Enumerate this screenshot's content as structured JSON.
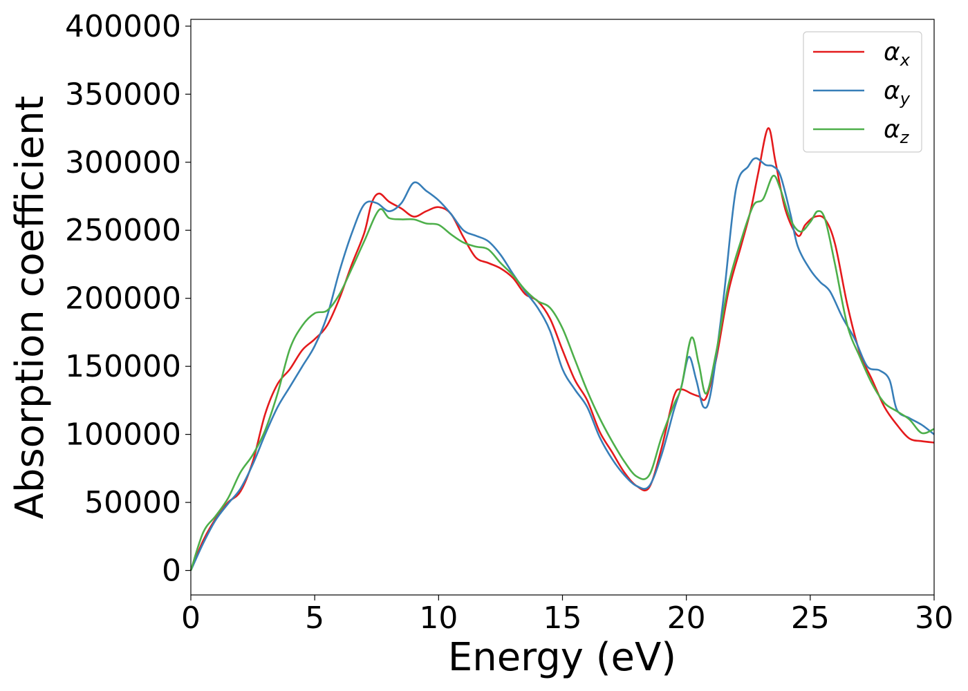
{
  "chart_data": {
    "type": "line",
    "title": "",
    "xlabel": "Energy (eV)",
    "ylabel": "Absorption coefficient",
    "xlim": [
      0,
      30
    ],
    "ylim": [
      -18000,
      405000
    ],
    "xticks": [
      0,
      5,
      10,
      15,
      20,
      25,
      30
    ],
    "xtick_labels": [
      "0",
      "5",
      "10",
      "15",
      "20",
      "25",
      "30"
    ],
    "yticks": [
      0,
      50000,
      100000,
      150000,
      200000,
      250000,
      300000,
      350000,
      400000
    ],
    "ytick_labels": [
      "0",
      "50000",
      "100000",
      "150000",
      "200000",
      "250000",
      "300000",
      "350000",
      "400000"
    ],
    "grid": false,
    "legend_position": "top-right",
    "series": [
      {
        "name": "α_x",
        "symbol": "α",
        "subscript": "x",
        "color": "#e41a1c",
        "points": [
          [
            0,
            0
          ],
          [
            0.5,
            22000
          ],
          [
            1,
            38000
          ],
          [
            1.5,
            50000
          ],
          [
            2,
            58000
          ],
          [
            2.5,
            80000
          ],
          [
            3,
            115000
          ],
          [
            3.5,
            137000
          ],
          [
            4,
            148000
          ],
          [
            4.5,
            162000
          ],
          [
            5,
            170000
          ],
          [
            5.5,
            180000
          ],
          [
            6,
            200000
          ],
          [
            6.5,
            225000
          ],
          [
            7,
            248000
          ],
          [
            7.3,
            270000
          ],
          [
            7.6,
            277000
          ],
          [
            8,
            271000
          ],
          [
            8.5,
            266000
          ],
          [
            9,
            260000
          ],
          [
            9.5,
            264000
          ],
          [
            10,
            267000
          ],
          [
            10.5,
            262000
          ],
          [
            11,
            245000
          ],
          [
            11.5,
            230000
          ],
          [
            12,
            226000
          ],
          [
            12.5,
            222000
          ],
          [
            13,
            215000
          ],
          [
            13.5,
            203000
          ],
          [
            14,
            198000
          ],
          [
            14.5,
            185000
          ],
          [
            15,
            162000
          ],
          [
            15.5,
            140000
          ],
          [
            16,
            125000
          ],
          [
            16.5,
            102000
          ],
          [
            17,
            87000
          ],
          [
            17.5,
            72000
          ],
          [
            18,
            62000
          ],
          [
            18.5,
            61000
          ],
          [
            19,
            90000
          ],
          [
            19.5,
            128000
          ],
          [
            19.8,
            133000
          ],
          [
            20.2,
            130000
          ],
          [
            20.5,
            128000
          ],
          [
            20.8,
            127000
          ],
          [
            21.2,
            155000
          ],
          [
            21.7,
            205000
          ],
          [
            22.2,
            238000
          ],
          [
            22.6,
            265000
          ],
          [
            22.9,
            292000
          ],
          [
            23.3,
            325000
          ],
          [
            23.6,
            300000
          ],
          [
            24,
            265000
          ],
          [
            24.5,
            246000
          ],
          [
            24.8,
            254000
          ],
          [
            25.2,
            260000
          ],
          [
            25.6,
            258000
          ],
          [
            26,
            240000
          ],
          [
            26.5,
            195000
          ],
          [
            27,
            160000
          ],
          [
            27.5,
            140000
          ],
          [
            28,
            120000
          ],
          [
            28.5,
            107000
          ],
          [
            29,
            97000
          ],
          [
            29.5,
            95000
          ],
          [
            30,
            94000
          ]
        ]
      },
      {
        "name": "α_y",
        "symbol": "α",
        "subscript": "y",
        "color": "#377eb8",
        "points": [
          [
            0,
            0
          ],
          [
            0.5,
            20000
          ],
          [
            1,
            37000
          ],
          [
            1.5,
            49000
          ],
          [
            2,
            60000
          ],
          [
            2.5,
            78000
          ],
          [
            3,
            100000
          ],
          [
            3.5,
            120000
          ],
          [
            4,
            135000
          ],
          [
            4.5,
            150000
          ],
          [
            5,
            165000
          ],
          [
            5.5,
            187000
          ],
          [
            6,
            220000
          ],
          [
            6.5,
            248000
          ],
          [
            7,
            269000
          ],
          [
            7.5,
            270000
          ],
          [
            8,
            264000
          ],
          [
            8.5,
            270000
          ],
          [
            9,
            285000
          ],
          [
            9.5,
            279000
          ],
          [
            10,
            272000
          ],
          [
            10.5,
            262000
          ],
          [
            11,
            250000
          ],
          [
            11.5,
            246000
          ],
          [
            12,
            242000
          ],
          [
            12.5,
            232000
          ],
          [
            13,
            218000
          ],
          [
            13.5,
            205000
          ],
          [
            14,
            193000
          ],
          [
            14.5,
            176000
          ],
          [
            15,
            148000
          ],
          [
            15.5,
            133000
          ],
          [
            16,
            120000
          ],
          [
            16.5,
            98000
          ],
          [
            17,
            82000
          ],
          [
            17.5,
            70000
          ],
          [
            18,
            62000
          ],
          [
            18.5,
            62000
          ],
          [
            19,
            85000
          ],
          [
            19.5,
            118000
          ],
          [
            19.8,
            135000
          ],
          [
            20.1,
            157000
          ],
          [
            20.4,
            140000
          ],
          [
            20.7,
            120000
          ],
          [
            21,
            132000
          ],
          [
            21.5,
            200000
          ],
          [
            22,
            280000
          ],
          [
            22.5,
            297000
          ],
          [
            22.8,
            303000
          ],
          [
            23.2,
            298000
          ],
          [
            23.5,
            297000
          ],
          [
            23.8,
            290000
          ],
          [
            24.2,
            262000
          ],
          [
            24.5,
            238000
          ],
          [
            25,
            221000
          ],
          [
            25.4,
            212000
          ],
          [
            25.8,
            205000
          ],
          [
            26.3,
            186000
          ],
          [
            26.8,
            170000
          ],
          [
            27.3,
            150000
          ],
          [
            27.8,
            147000
          ],
          [
            28.2,
            140000
          ],
          [
            28.5,
            118000
          ],
          [
            29,
            112000
          ],
          [
            29.5,
            107000
          ],
          [
            30,
            100000
          ]
        ]
      },
      {
        "name": "α_z",
        "symbol": "α",
        "subscript": "z",
        "color": "#4daf4a",
        "points": [
          [
            0,
            0
          ],
          [
            0.5,
            28000
          ],
          [
            1,
            40000
          ],
          [
            1.5,
            53000
          ],
          [
            2,
            72000
          ],
          [
            2.5,
            85000
          ],
          [
            3,
            103000
          ],
          [
            3.5,
            130000
          ],
          [
            4,
            163000
          ],
          [
            4.5,
            180000
          ],
          [
            5,
            189000
          ],
          [
            5.5,
            191000
          ],
          [
            6,
            203000
          ],
          [
            6.5,
            222000
          ],
          [
            7,
            242000
          ],
          [
            7.6,
            265000
          ],
          [
            8,
            259000
          ],
          [
            8.5,
            258000
          ],
          [
            9,
            258000
          ],
          [
            9.5,
            255000
          ],
          [
            10,
            254000
          ],
          [
            10.5,
            247000
          ],
          [
            11,
            241000
          ],
          [
            11.5,
            238000
          ],
          [
            12,
            236000
          ],
          [
            12.5,
            226000
          ],
          [
            13,
            217000
          ],
          [
            13.5,
            206000
          ],
          [
            14,
            198000
          ],
          [
            14.5,
            193000
          ],
          [
            15,
            178000
          ],
          [
            15.5,
            155000
          ],
          [
            16,
            132000
          ],
          [
            16.5,
            112000
          ],
          [
            17,
            95000
          ],
          [
            17.5,
            80000
          ],
          [
            18,
            69000
          ],
          [
            18.5,
            70000
          ],
          [
            19,
            98000
          ],
          [
            19.5,
            122000
          ],
          [
            19.8,
            135000
          ],
          [
            20.2,
            171000
          ],
          [
            20.5,
            152000
          ],
          [
            20.8,
            130000
          ],
          [
            21.2,
            160000
          ],
          [
            21.7,
            210000
          ],
          [
            22.2,
            242000
          ],
          [
            22.7,
            268000
          ],
          [
            23.1,
            273000
          ],
          [
            23.5,
            290000
          ],
          [
            23.8,
            280000
          ],
          [
            24.2,
            258000
          ],
          [
            24.6,
            249000
          ],
          [
            25,
            256000
          ],
          [
            25.3,
            264000
          ],
          [
            25.6,
            258000
          ],
          [
            26,
            225000
          ],
          [
            26.5,
            180000
          ],
          [
            27,
            157000
          ],
          [
            27.5,
            137000
          ],
          [
            28,
            123000
          ],
          [
            28.5,
            117000
          ],
          [
            29,
            111000
          ],
          [
            29.5,
            101000
          ],
          [
            30,
            104000
          ]
        ]
      }
    ]
  }
}
